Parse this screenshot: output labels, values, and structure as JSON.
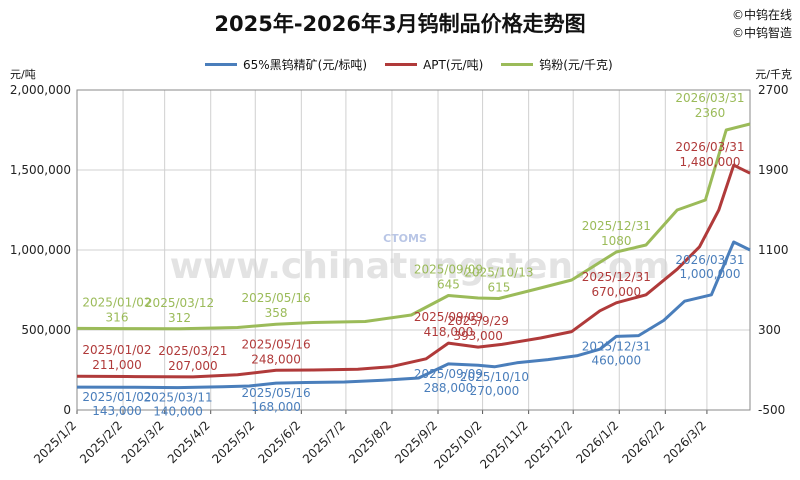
{
  "header": {
    "title": "2025年-2026年3月钨制品价格走势图",
    "brand_top": "©中钨在线",
    "brand_bottom": "©中钨智造"
  },
  "watermark": {
    "url": "www.chinatungsten.com",
    "logo": "CTOMS"
  },
  "chart_data": {
    "type": "line",
    "title": "2025年-2026年3月钨制品价格走势图",
    "xlabel": "",
    "ylabel_left": "元/吨",
    "ylabel_right": "元/千克",
    "ylim_left": [
      0,
      2000000
    ],
    "ylim_right": [
      -500,
      2700
    ],
    "yticks_left": [
      "0",
      "500,000",
      "1,000,000",
      "1,500,000",
      "2,000,000"
    ],
    "yticks_right": [
      "-500",
      "300",
      "1100",
      "1900",
      "2700"
    ],
    "xticks": [
      "2025/1/2",
      "2025/2/2",
      "2025/3/2",
      "2025/4/2",
      "2025/5/2",
      "2025/6/2",
      "2025/7/2",
      "2025/8/2",
      "2025/9/2",
      "2025/10/2",
      "2025/11/2",
      "2025/12/2",
      "2026/1/2",
      "2026/2/2",
      "2026/3/2"
    ],
    "grid": true,
    "legend_position": "top",
    "series": [
      {
        "name": "65%黑钨精矿(元/标吨)",
        "axis": "left",
        "color": "#4a7ebb",
        "points": [
          [
            "2025/01/02",
            143000
          ],
          [
            "2025/02/10",
            142000
          ],
          [
            "2025/03/11",
            140000
          ],
          [
            "2025/04/10",
            145000
          ],
          [
            "2025/04/28",
            150000
          ],
          [
            "2025/05/16",
            168000
          ],
          [
            "2025/06/05",
            172000
          ],
          [
            "2025/07/01",
            175000
          ],
          [
            "2025/07/25",
            185000
          ],
          [
            "2025/08/20",
            200000
          ],
          [
            "2025/09/09",
            288000
          ],
          [
            "2025/09/29",
            280000
          ],
          [
            "2025/10/10",
            270000
          ],
          [
            "2025/10/25",
            295000
          ],
          [
            "2025/11/15",
            315000
          ],
          [
            "2025/12/05",
            340000
          ],
          [
            "2025/12/20",
            380000
          ],
          [
            "2025/12/31",
            460000
          ],
          [
            "2026/01/15",
            465000
          ],
          [
            "2026/02/01",
            560000
          ],
          [
            "2026/02/15",
            680000
          ],
          [
            "2026/03/05",
            720000
          ],
          [
            "2026/03/15",
            940000
          ],
          [
            "2026/03/20",
            1050000
          ],
          [
            "2026/03/31",
            1000000
          ]
        ]
      },
      {
        "name": "APT(元/吨)",
        "axis": "left",
        "color": "#b03a3a",
        "points": [
          [
            "2025/01/02",
            211000
          ],
          [
            "2025/02/10",
            209000
          ],
          [
            "2025/03/21",
            207000
          ],
          [
            "2025/04/20",
            220000
          ],
          [
            "2025/05/16",
            248000
          ],
          [
            "2025/06/10",
            250000
          ],
          [
            "2025/07/10",
            255000
          ],
          [
            "2025/08/01",
            270000
          ],
          [
            "2025/08/25",
            320000
          ],
          [
            "2025/09/09",
            418000
          ],
          [
            "2025/09/29",
            393000
          ],
          [
            "2025/10/15",
            410000
          ],
          [
            "2025/11/10",
            450000
          ],
          [
            "2025/12/01",
            490000
          ],
          [
            "2025/12/20",
            620000
          ],
          [
            "2025/12/31",
            670000
          ],
          [
            "2026/01/20",
            720000
          ],
          [
            "2026/02/10",
            880000
          ],
          [
            "2026/02/25",
            1020000
          ],
          [
            "2026/03/10",
            1250000
          ],
          [
            "2026/03/20",
            1530000
          ],
          [
            "2026/03/31",
            1480000
          ]
        ]
      },
      {
        "name": "钨粉(元/千克)",
        "axis": "right",
        "color": "#9bbb59",
        "points": [
          [
            "2025/01/02",
            316
          ],
          [
            "2025/02/10",
            314
          ],
          [
            "2025/03/12",
            312
          ],
          [
            "2025/04/20",
            325
          ],
          [
            "2025/05/16",
            358
          ],
          [
            "2025/06/10",
            375
          ],
          [
            "2025/07/15",
            385
          ],
          [
            "2025/08/15",
            450
          ],
          [
            "2025/09/09",
            645
          ],
          [
            "2025/09/29",
            620
          ],
          [
            "2025/10/13",
            615
          ],
          [
            "2025/11/10",
            720
          ],
          [
            "2025/12/01",
            800
          ],
          [
            "2025/12/31",
            1080
          ],
          [
            "2026/01/20",
            1150
          ],
          [
            "2026/02/10",
            1500
          ],
          [
            "2026/03/01",
            1600
          ],
          [
            "2026/03/15",
            2300
          ],
          [
            "2026/03/31",
            2360
          ]
        ]
      }
    ],
    "annotations": [
      {
        "series": 0,
        "date": "2025/01/02",
        "label": "143,000",
        "date_label": "2025/01/02"
      },
      {
        "series": 0,
        "date": "2025/03/11",
        "label": "140,000",
        "date_label": "2025/03/11"
      },
      {
        "series": 0,
        "date": "2025/05/16",
        "label": "168,000",
        "date_label": "2025/05/16"
      },
      {
        "series": 0,
        "date": "2025/09/09",
        "label": "288,000",
        "date_label": "2025/09/09"
      },
      {
        "series": 0,
        "date": "2025/10/10",
        "label": "270,000",
        "date_label": "2025/10/10"
      },
      {
        "series": 0,
        "date": "2025/12/31",
        "label": "460,000",
        "date_label": "2025/12/31"
      },
      {
        "series": 0,
        "date": "2026/03/31",
        "label": "1,000,000",
        "date_label": "2026/03/31"
      },
      {
        "series": 1,
        "date": "2025/01/02",
        "label": "211,000",
        "date_label": "2025/01/02"
      },
      {
        "series": 1,
        "date": "2025/03/21",
        "label": "207,000",
        "date_label": "2025/03/21"
      },
      {
        "series": 1,
        "date": "2025/05/16",
        "label": "248,000",
        "date_label": "2025/05/16"
      },
      {
        "series": 1,
        "date": "2025/09/09",
        "label": "418,000",
        "date_label": "2025/09/09"
      },
      {
        "series": 1,
        "date": "2025/09/29",
        "label": "393,000",
        "date_label": "2025/9/29"
      },
      {
        "series": 1,
        "date": "2025/12/31",
        "label": "670,000",
        "date_label": "2025/12/31"
      },
      {
        "series": 1,
        "date": "2026/03/31",
        "label": "1,480,000",
        "date_label": "2026/03/31"
      },
      {
        "series": 2,
        "date": "2025/01/02",
        "label": "316",
        "date_label": "2025/01/02"
      },
      {
        "series": 2,
        "date": "2025/03/12",
        "label": "312",
        "date_label": "2025/03/12"
      },
      {
        "series": 2,
        "date": "2025/05/16",
        "label": "358",
        "date_label": "2025/05/16"
      },
      {
        "series": 2,
        "date": "2025/09/09",
        "label": "645",
        "date_label": "2025/09/09"
      },
      {
        "series": 2,
        "date": "2025/10/13",
        "label": "615",
        "date_label": "2025/10/13"
      },
      {
        "series": 2,
        "date": "2025/12/31",
        "label": "1080",
        "date_label": "2025/12/31"
      },
      {
        "series": 2,
        "date": "2026/03/31",
        "label": "2360",
        "date_label": "2026/03/31"
      }
    ]
  }
}
